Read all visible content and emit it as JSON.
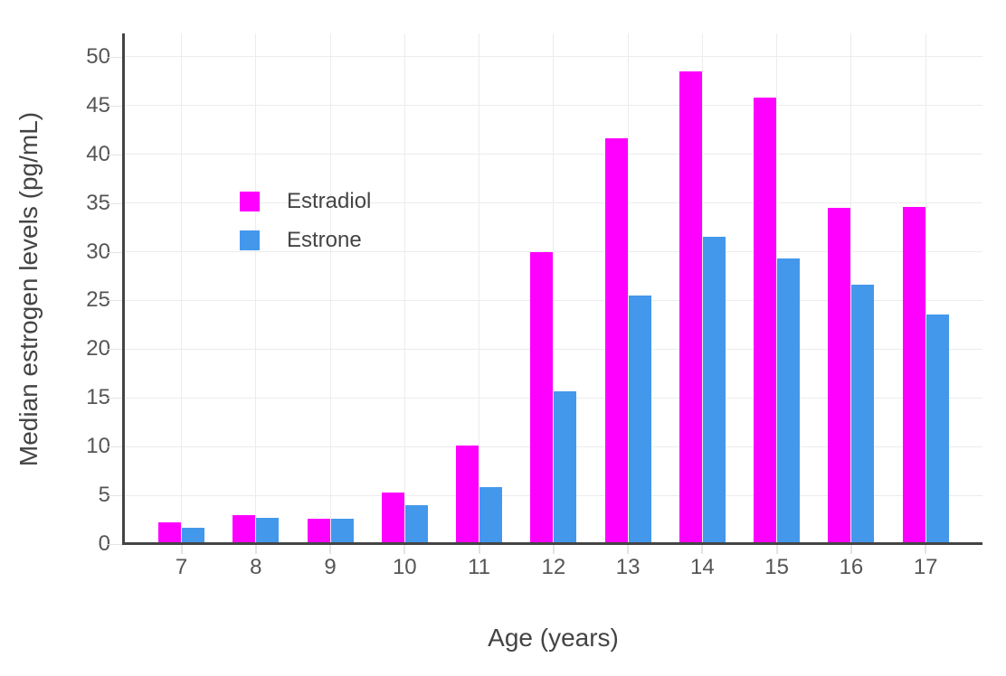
{
  "chart_data": {
    "type": "bar",
    "title": "",
    "xlabel": "Age (years)",
    "ylabel": "Median estrogen levels (pg/mL)",
    "categories": [
      "7",
      "8",
      "9",
      "10",
      "11",
      "12",
      "13",
      "14",
      "15",
      "16",
      "17"
    ],
    "series": [
      {
        "name": "Estradiol",
        "color": "#ff00ff",
        "values": [
          2.2,
          3.0,
          2.6,
          5.3,
          10.1,
          30.0,
          41.6,
          48.5,
          45.8,
          34.5,
          34.6
        ]
      },
      {
        "name": "Estrone",
        "color": "#4398ec",
        "values": [
          1.7,
          2.7,
          2.6,
          4.0,
          5.8,
          15.7,
          25.5,
          31.5,
          29.3,
          26.6,
          23.6
        ]
      }
    ],
    "yticks": [
      0,
      5,
      10,
      15,
      20,
      25,
      30,
      35,
      40,
      45,
      50
    ],
    "ylim": [
      0,
      52.4
    ],
    "grid": true,
    "legend_position": "inside-top-left"
  },
  "colors": {
    "axis_line": "#444444",
    "gridline": "#ececec",
    "tick_label": "#555555",
    "axis_title": "#444444",
    "background": "#ffffff"
  }
}
